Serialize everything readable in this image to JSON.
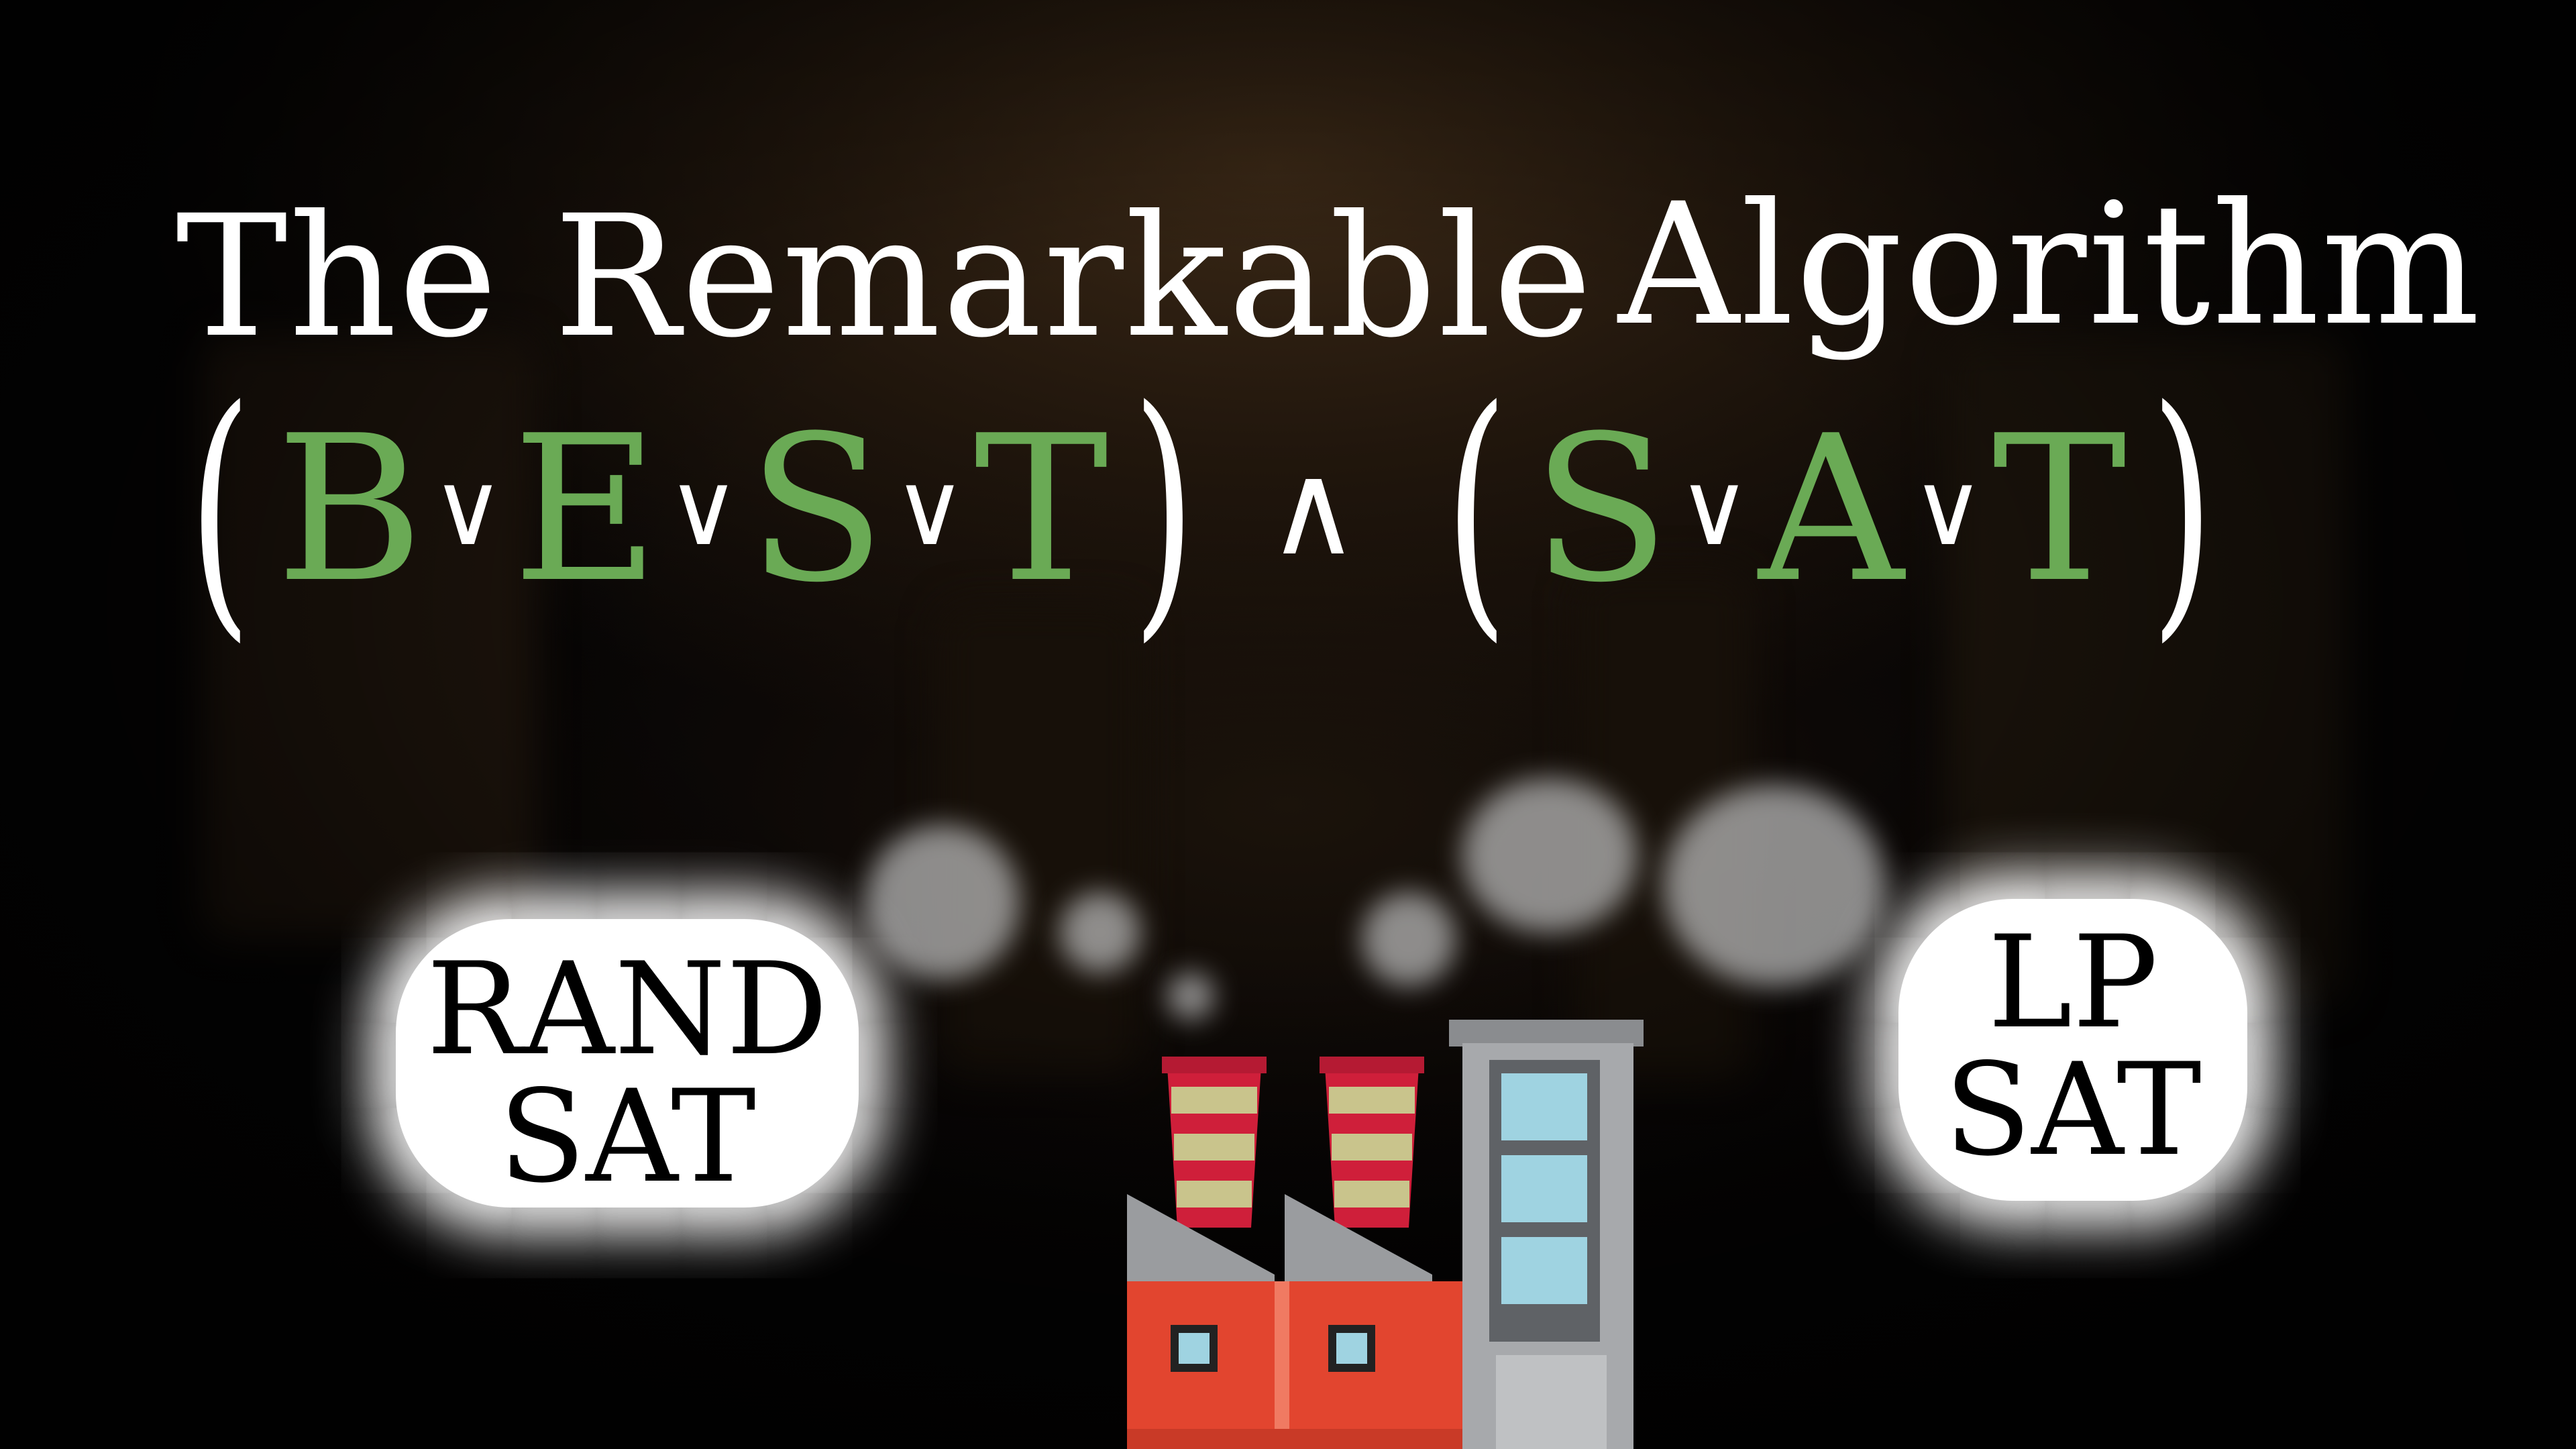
{
  "title": {
    "line1": "The Remarkable",
    "line2": "Algorithm"
  },
  "formula": {
    "open_paren": "(",
    "close_paren": ")",
    "or_symbol": "∨",
    "and_symbol": "∧",
    "clause1": [
      "B",
      "E",
      "S",
      "T"
    ],
    "clause2": [
      "S",
      "A",
      "T"
    ]
  },
  "bubbles": {
    "left": {
      "line1": "RAND",
      "line2": "SAT"
    },
    "right": {
      "line1": "LP",
      "line2": "SAT"
    }
  },
  "colors": {
    "literal_green": "#6aaa55",
    "factory_red": "#e2452f",
    "chimney_red": "#cf1f3a",
    "chimney_stripe": "#c9c48c",
    "building_gray": "#a7a9ac",
    "window_blue": "#9fd3e1"
  },
  "icons": [
    "factory-icon",
    "smoke-puff"
  ]
}
